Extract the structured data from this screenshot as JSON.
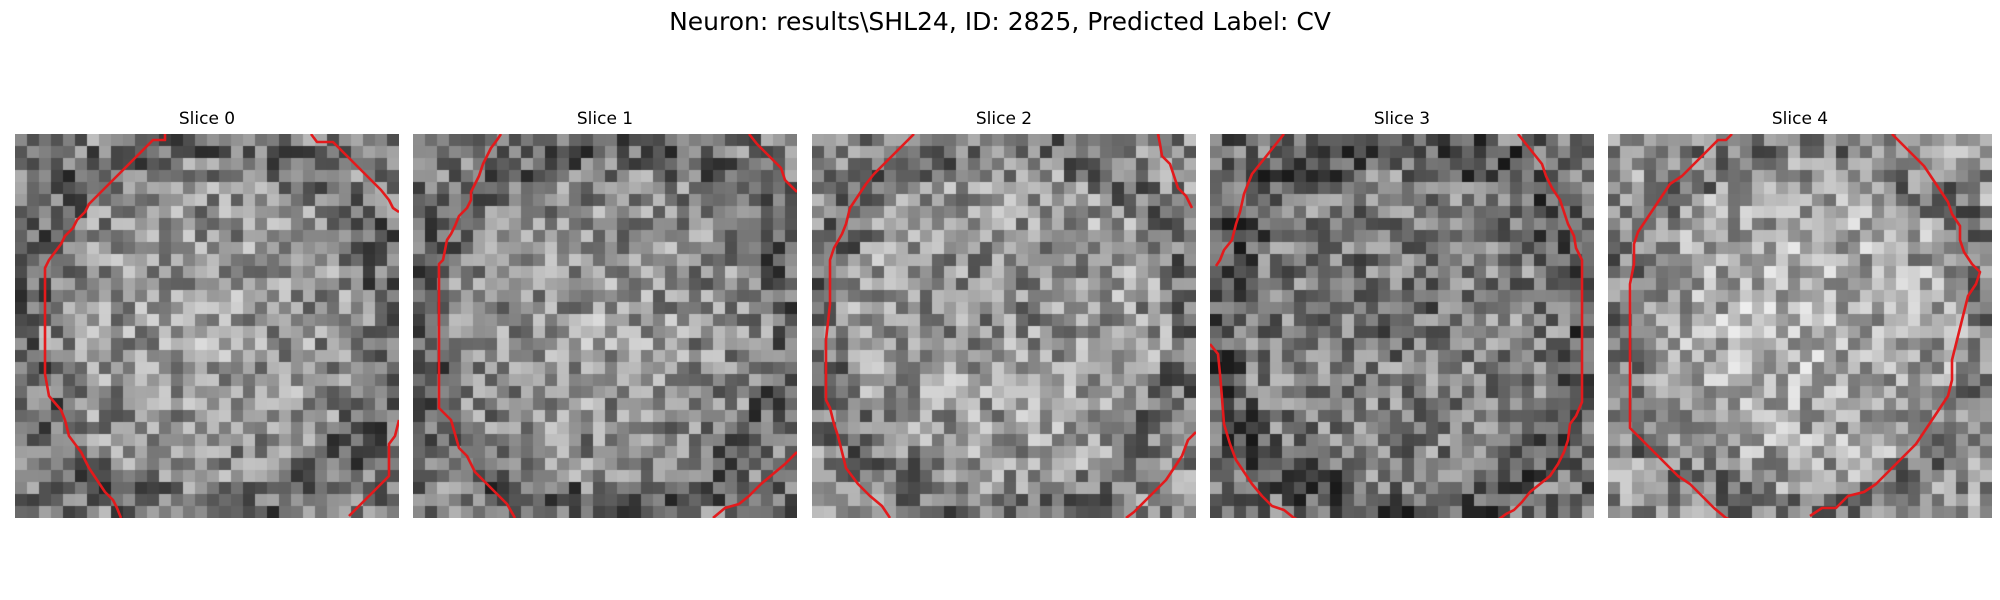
{
  "figure": {
    "title": "Neuron: results\\SHL24, ID: 2825, Predicted Label: CV",
    "contour_color": "#e31a1c",
    "colormap": "grayscale"
  },
  "slices": [
    {
      "title": "Slice 0",
      "brightness": 0.52
    },
    {
      "title": "Slice 1",
      "brightness": 0.5
    },
    {
      "title": "Slice 2",
      "brightness": 0.56
    },
    {
      "title": "Slice 3",
      "brightness": 0.46
    },
    {
      "title": "Slice 4",
      "brightness": 0.6
    }
  ]
}
